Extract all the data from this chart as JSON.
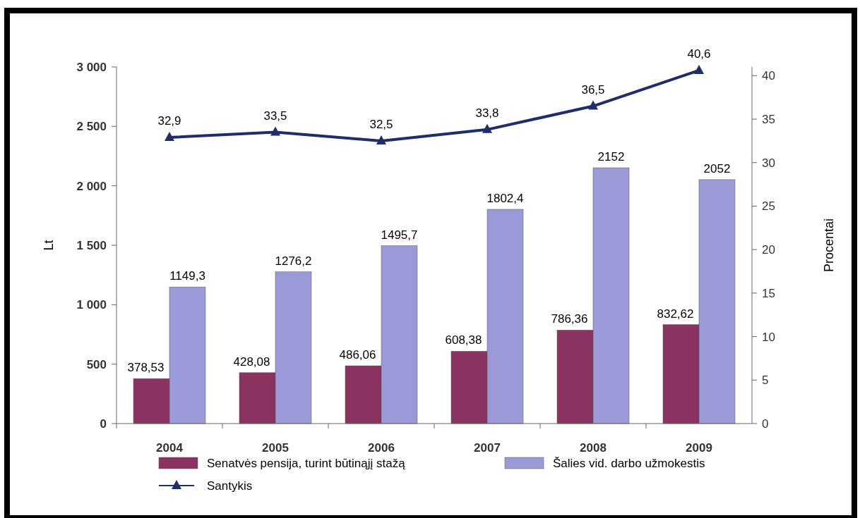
{
  "chart_data": {
    "type": "bar",
    "categories": [
      "2004",
      "2005",
      "2006",
      "2007",
      "2008",
      "2009"
    ],
    "ylabel": "Lt",
    "y2label": "Procentai",
    "ylim": [
      0,
      3000
    ],
    "yticks": [
      0,
      500,
      {
        "value": 1000,
        "label": "1 000"
      },
      {
        "value": 1500,
        "label": "1 500"
      },
      {
        "value": 2000,
        "label": "2 000"
      },
      {
        "value": 2500,
        "label": "2 500"
      },
      {
        "value": 3000,
        "label": "3 000"
      }
    ],
    "y2lim": [
      0,
      41
    ],
    "y2ticks": [
      0,
      5,
      10,
      15,
      20,
      25,
      30,
      35,
      40
    ],
    "grid": false,
    "legend": "bottom",
    "series": [
      {
        "name": "Senatvės pensija, turint būtinąjį stažą",
        "color": "#8b3360",
        "values": [
          378.53,
          428.08,
          486.06,
          608.38,
          786.36,
          832.62
        ],
        "value_labels": [
          "378,53",
          "428,08",
          "486,06",
          "608,38",
          "786,36",
          "832,62"
        ]
      },
      {
        "name": "Šalies vid. darbo užmokestis",
        "color": "#9a9ad8",
        "values": [
          1149.3,
          1276.2,
          1495.7,
          1802.4,
          2152,
          2052
        ],
        "value_labels": [
          "1149,3",
          "1276,2",
          "1495,7",
          "1802,4",
          "2152",
          "2052"
        ]
      },
      {
        "name": "Santykis",
        "type": "line",
        "axis": "y2",
        "color": "#1f2d6b",
        "marker": "triangle",
        "values": [
          32.9,
          33.5,
          32.5,
          33.8,
          36.5,
          40.6
        ],
        "value_labels": [
          "32,9",
          "33,5",
          "32,5",
          "33,8",
          "36,5",
          "40,6"
        ]
      }
    ]
  }
}
